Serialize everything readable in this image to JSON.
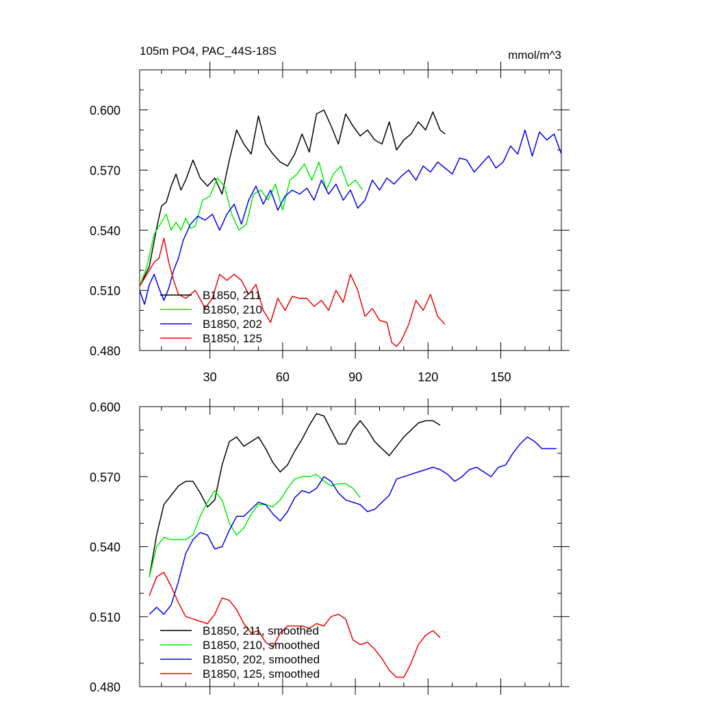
{
  "chart_data": [
    {
      "type": "line",
      "title": "105m PO4, PAC_44S-18S",
      "units": "mmol/m^3",
      "xlim": [
        1,
        175
      ],
      "ylim": [
        0.48,
        0.62
      ],
      "yticks": [
        0.48,
        0.51,
        0.54,
        0.57,
        0.6
      ],
      "ytick_labels": [
        "0.480",
        "0.510",
        "0.540",
        "0.570",
        "0.600"
      ],
      "xticks": [
        30,
        60,
        90,
        120,
        150
      ],
      "xtick_labels": [
        "30",
        "60",
        "90",
        "120",
        "150"
      ],
      "legend_position": "lower-left",
      "series": [
        {
          "name": "B1850, 211",
          "color": "#000000",
          "x": [
            1,
            5,
            8,
            10,
            12,
            14,
            16,
            18,
            20,
            23,
            26,
            29,
            32,
            35,
            38,
            41,
            44,
            47,
            50,
            53,
            56,
            59,
            62,
            65,
            68,
            71,
            74,
            77,
            80,
            83,
            86,
            89,
            92,
            95,
            98,
            101,
            104,
            107,
            110,
            113,
            116,
            119,
            122,
            125,
            127
          ],
          "y": [
            0.512,
            0.522,
            0.541,
            0.552,
            0.554,
            0.562,
            0.568,
            0.56,
            0.565,
            0.575,
            0.566,
            0.562,
            0.566,
            0.558,
            0.575,
            0.59,
            0.583,
            0.578,
            0.597,
            0.583,
            0.578,
            0.574,
            0.572,
            0.578,
            0.588,
            0.579,
            0.598,
            0.6,
            0.592,
            0.583,
            0.598,
            0.592,
            0.587,
            0.59,
            0.585,
            0.583,
            0.594,
            0.58,
            0.585,
            0.588,
            0.594,
            0.59,
            0.599,
            0.59,
            0.588
          ]
        },
        {
          "name": "B1850, 210",
          "color": "#00ee00",
          "x": [
            1,
            4,
            7,
            9,
            12,
            14,
            16,
            18,
            20,
            22,
            24,
            27,
            30,
            33,
            36,
            39,
            42,
            45,
            48,
            51,
            54,
            57,
            60,
            63,
            66,
            69,
            72,
            75,
            78,
            81,
            84,
            87,
            90,
            93
          ],
          "y": [
            0.512,
            0.522,
            0.538,
            0.542,
            0.548,
            0.54,
            0.544,
            0.54,
            0.546,
            0.541,
            0.542,
            0.555,
            0.557,
            0.566,
            0.562,
            0.548,
            0.54,
            0.543,
            0.558,
            0.56,
            0.555,
            0.563,
            0.55,
            0.565,
            0.568,
            0.573,
            0.565,
            0.574,
            0.56,
            0.568,
            0.572,
            0.562,
            0.565,
            0.56
          ]
        },
        {
          "name": "B1850, 202",
          "color": "#0000ee",
          "x": [
            1,
            3,
            5,
            7,
            9,
            11,
            13,
            15,
            17,
            19,
            22,
            25,
            28,
            31,
            34,
            37,
            40,
            43,
            46,
            49,
            52,
            55,
            58,
            61,
            64,
            67,
            70,
            73,
            76,
            79,
            82,
            85,
            88,
            91,
            94,
            97,
            100,
            103,
            106,
            109,
            112,
            115,
            118,
            121,
            124,
            127,
            130,
            133,
            136,
            139,
            142,
            145,
            148,
            151,
            154,
            157,
            160,
            163,
            166,
            169,
            172,
            175
          ],
          "y": [
            0.51,
            0.503,
            0.513,
            0.518,
            0.511,
            0.505,
            0.511,
            0.52,
            0.526,
            0.535,
            0.543,
            0.547,
            0.545,
            0.548,
            0.54,
            0.548,
            0.553,
            0.543,
            0.555,
            0.562,
            0.553,
            0.56,
            0.55,
            0.557,
            0.56,
            0.558,
            0.561,
            0.555,
            0.565,
            0.558,
            0.563,
            0.555,
            0.56,
            0.551,
            0.555,
            0.565,
            0.56,
            0.566,
            0.563,
            0.567,
            0.57,
            0.565,
            0.572,
            0.569,
            0.574,
            0.571,
            0.568,
            0.576,
            0.575,
            0.569,
            0.573,
            0.577,
            0.571,
            0.574,
            0.582,
            0.578,
            0.59,
            0.577,
            0.589,
            0.585,
            0.588,
            0.578
          ]
        },
        {
          "name": "B1850, 125",
          "color": "#ee0000",
          "x": [
            1,
            4,
            7,
            9,
            11,
            13,
            15,
            17,
            20,
            24,
            28,
            31,
            34,
            37,
            40,
            43,
            46,
            49,
            52,
            55,
            58,
            61,
            64,
            67,
            70,
            73,
            76,
            79,
            82,
            85,
            88,
            91,
            94,
            97,
            100,
            103,
            105,
            107,
            109,
            112,
            115,
            118,
            121,
            124,
            127
          ],
          "y": [
            0.512,
            0.518,
            0.524,
            0.526,
            0.536,
            0.524,
            0.515,
            0.508,
            0.506,
            0.51,
            0.501,
            0.506,
            0.518,
            0.515,
            0.518,
            0.515,
            0.508,
            0.513,
            0.5,
            0.494,
            0.506,
            0.5,
            0.507,
            0.506,
            0.506,
            0.502,
            0.505,
            0.5,
            0.51,
            0.504,
            0.518,
            0.51,
            0.497,
            0.501,
            0.495,
            0.494,
            0.484,
            0.482,
            0.485,
            0.493,
            0.505,
            0.5,
            0.508,
            0.497,
            0.493
          ]
        }
      ]
    },
    {
      "type": "line",
      "xlim": [
        1,
        175
      ],
      "ylim": [
        0.48,
        0.6
      ],
      "yticks": [
        0.48,
        0.51,
        0.54,
        0.57,
        0.6
      ],
      "ytick_labels": [
        "0.480",
        "0.510",
        "0.540",
        "0.570",
        "0.600"
      ],
      "legend_position": "lower-left",
      "series": [
        {
          "name": "B1850, 211, smoothed",
          "color": "#000000",
          "x": [
            5,
            8,
            11,
            14,
            17,
            20,
            23,
            26,
            29,
            32,
            35,
            38,
            41,
            44,
            47,
            50,
            53,
            56,
            59,
            62,
            65,
            68,
            71,
            74,
            77,
            80,
            83,
            86,
            89,
            92,
            95,
            98,
            101,
            104,
            107,
            110,
            113,
            116,
            119,
            122,
            125
          ],
          "y": [
            0.527,
            0.545,
            0.558,
            0.562,
            0.566,
            0.568,
            0.568,
            0.563,
            0.557,
            0.56,
            0.575,
            0.585,
            0.587,
            0.583,
            0.585,
            0.587,
            0.582,
            0.576,
            0.572,
            0.575,
            0.581,
            0.586,
            0.592,
            0.597,
            0.596,
            0.59,
            0.584,
            0.584,
            0.59,
            0.594,
            0.59,
            0.585,
            0.582,
            0.579,
            0.583,
            0.587,
            0.59,
            0.593,
            0.594,
            0.594,
            0.592
          ]
        },
        {
          "name": "B1850, 210, smoothed",
          "color": "#00ee00",
          "x": [
            5,
            8,
            11,
            14,
            17,
            20,
            23,
            26,
            29,
            32,
            35,
            38,
            41,
            44,
            47,
            50,
            53,
            56,
            59,
            62,
            65,
            68,
            71,
            74,
            77,
            80,
            83,
            86,
            89,
            92
          ],
          "y": [
            0.527,
            0.54,
            0.544,
            0.543,
            0.543,
            0.543,
            0.545,
            0.553,
            0.559,
            0.564,
            0.56,
            0.55,
            0.545,
            0.548,
            0.554,
            0.558,
            0.558,
            0.557,
            0.56,
            0.565,
            0.569,
            0.57,
            0.57,
            0.571,
            0.568,
            0.566,
            0.567,
            0.567,
            0.565,
            0.561
          ]
        },
        {
          "name": "B1850, 202, smoothed",
          "color": "#0000ee",
          "x": [
            5,
            8,
            11,
            14,
            17,
            20,
            23,
            26,
            29,
            32,
            35,
            38,
            41,
            44,
            47,
            50,
            53,
            56,
            59,
            62,
            65,
            68,
            71,
            74,
            77,
            80,
            83,
            86,
            89,
            92,
            95,
            98,
            101,
            104,
            107,
            110,
            113,
            116,
            119,
            122,
            125,
            128,
            131,
            134,
            137,
            140,
            143,
            146,
            149,
            152,
            155,
            158,
            161,
            164,
            167,
            170,
            173
          ],
          "y": [
            0.511,
            0.514,
            0.511,
            0.515,
            0.525,
            0.537,
            0.543,
            0.546,
            0.545,
            0.539,
            0.54,
            0.547,
            0.553,
            0.553,
            0.556,
            0.559,
            0.558,
            0.554,
            0.551,
            0.555,
            0.561,
            0.564,
            0.563,
            0.565,
            0.57,
            0.568,
            0.563,
            0.56,
            0.559,
            0.558,
            0.555,
            0.556,
            0.559,
            0.562,
            0.569,
            0.57,
            0.571,
            0.572,
            0.573,
            0.574,
            0.573,
            0.571,
            0.568,
            0.57,
            0.573,
            0.574,
            0.572,
            0.57,
            0.574,
            0.575,
            0.58,
            0.584,
            0.587,
            0.585,
            0.582,
            0.582,
            0.582
          ]
        },
        {
          "name": "B1850, 125, smoothed",
          "color": "#ee0000",
          "x": [
            5,
            8,
            11,
            14,
            17,
            20,
            23,
            26,
            29,
            32,
            35,
            38,
            41,
            44,
            47,
            50,
            53,
            56,
            59,
            62,
            65,
            68,
            71,
            74,
            77,
            80,
            83,
            86,
            89,
            92,
            95,
            98,
            101,
            104,
            107,
            110,
            113,
            116,
            119,
            122,
            125
          ],
          "y": [
            0.519,
            0.527,
            0.529,
            0.523,
            0.516,
            0.51,
            0.509,
            0.508,
            0.507,
            0.511,
            0.518,
            0.517,
            0.513,
            0.507,
            0.503,
            0.504,
            0.499,
            0.497,
            0.503,
            0.506,
            0.506,
            0.506,
            0.505,
            0.507,
            0.506,
            0.51,
            0.511,
            0.509,
            0.5,
            0.498,
            0.499,
            0.496,
            0.492,
            0.487,
            0.484,
            0.484,
            0.49,
            0.498,
            0.502,
            0.504,
            0.501
          ]
        }
      ]
    }
  ]
}
